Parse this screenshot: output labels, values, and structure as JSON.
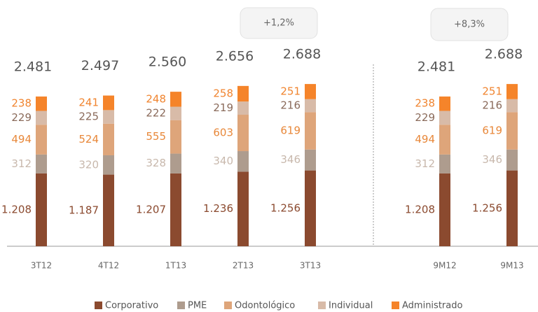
{
  "chart_data": {
    "type": "stacked_bar",
    "categories": [
      "3T12",
      "4T12",
      "1T13",
      "2T13",
      "3T13",
      "9M12",
      "9M13"
    ],
    "series": [
      {
        "name": "Corporativo",
        "color": "#8b4a2f",
        "values": [
          1208,
          1187,
          1207,
          1236,
          1256,
          1208,
          1256
        ],
        "value_labels": [
          "1.208",
          "1.187",
          "1.207",
          "1.236",
          "1.256",
          "1.208",
          "1.256"
        ]
      },
      {
        "name": "PME",
        "color": "#ae9c8e",
        "values": [
          312,
          320,
          328,
          340,
          346,
          312,
          346
        ]
      },
      {
        "name": "Odontológico",
        "color": "#dea57a",
        "values": [
          494,
          524,
          555,
          603,
          619,
          494,
          619
        ]
      },
      {
        "name": "Individual",
        "color": "#d8bba8",
        "values": [
          229,
          225,
          222,
          219,
          216,
          229,
          216
        ]
      },
      {
        "name": "Administrado",
        "color": "#f5842a",
        "values": [
          238,
          241,
          248,
          258,
          251,
          238,
          251
        ]
      }
    ],
    "totals": {
      "values": [
        2481,
        2497,
        2560,
        2656,
        2688,
        2481,
        2688
      ],
      "value_labels": [
        "2.481",
        "2.497",
        "2.560",
        "2.656",
        "2.688",
        "2.481",
        "2.688"
      ]
    },
    "annotations": [
      "+1,2%",
      "+8,3%"
    ],
    "ylim": [
      0,
      4080
    ],
    "legend": "bottom"
  }
}
